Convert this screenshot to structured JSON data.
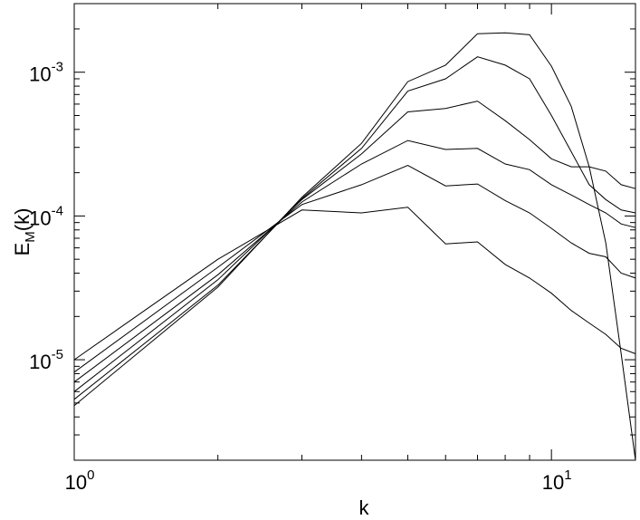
{
  "chart_data": {
    "type": "line",
    "title": "",
    "xlabel": "k",
    "ylabel": {
      "main": "E",
      "sub": "M",
      "suffix": "(k)"
    },
    "xscale": "log",
    "yscale": "log",
    "xlim": [
      1,
      15
    ],
    "ylim": [
      2e-06,
      0.003
    ],
    "grid": false,
    "legend": "none",
    "line_color": "#000000",
    "x_ticks": [
      {
        "value": 1,
        "base": "10",
        "exp": "0"
      },
      {
        "value": 10,
        "base": "10",
        "exp": "1"
      }
    ],
    "y_ticks": [
      {
        "value": 1e-05,
        "base": "10",
        "exp": "-5"
      },
      {
        "value": 0.0001,
        "base": "10",
        "exp": "-4"
      },
      {
        "value": 0.001,
        "base": "10",
        "exp": "-3"
      }
    ],
    "x": [
      1,
      2,
      3,
      4,
      5,
      6,
      7,
      8,
      9,
      10,
      11,
      12,
      13,
      14,
      15
    ],
    "series": [
      {
        "values": [
          1e-05,
          5e-05,
          0.00011,
          0.000105,
          0.000115,
          6.4e-05,
          6.6e-05,
          4.6e-05,
          3.7e-05,
          2.9e-05,
          2.2e-05,
          1.8e-05,
          1.5e-05,
          1.2e-05,
          1.1e-05
        ]
      },
      {
        "values": [
          8.2e-06,
          4.4e-05,
          0.00012,
          0.000165,
          0.000225,
          0.000162,
          0.000167,
          0.000128,
          0.000105,
          8.2e-05,
          6.5e-05,
          5.5e-05,
          5.2e-05,
          4e-05,
          3.7e-05
        ]
      },
      {
        "values": [
          7e-06,
          3.9e-05,
          0.000125,
          0.00023,
          0.000335,
          0.00029,
          0.000295,
          0.00023,
          0.00021,
          0.000165,
          0.00014,
          0.00012,
          0.000105,
          8.8e-05,
          8.3e-05
        ]
      },
      {
        "values": [
          6e-06,
          3.6e-05,
          0.00013,
          0.00027,
          0.00053,
          0.00056,
          0.00063,
          0.00046,
          0.00034,
          0.00025,
          0.00022,
          0.00022,
          0.000205,
          0.000165,
          0.000155
        ]
      },
      {
        "values": [
          5.3e-06,
          3.3e-05,
          0.000132,
          0.000295,
          0.00074,
          0.0009,
          0.00128,
          0.00112,
          0.0009,
          0.0005,
          0.00028,
          0.000165,
          0.00013,
          0.00011,
          0.000105
        ]
      },
      {
        "values": [
          4.8e-06,
          3.2e-05,
          0.000135,
          0.00032,
          0.00086,
          0.00112,
          0.00185,
          0.00188,
          0.00182,
          0.0011,
          0.00058,
          0.00022,
          6.5e-05,
          1.1e-05,
          2e-06
        ]
      }
    ]
  }
}
